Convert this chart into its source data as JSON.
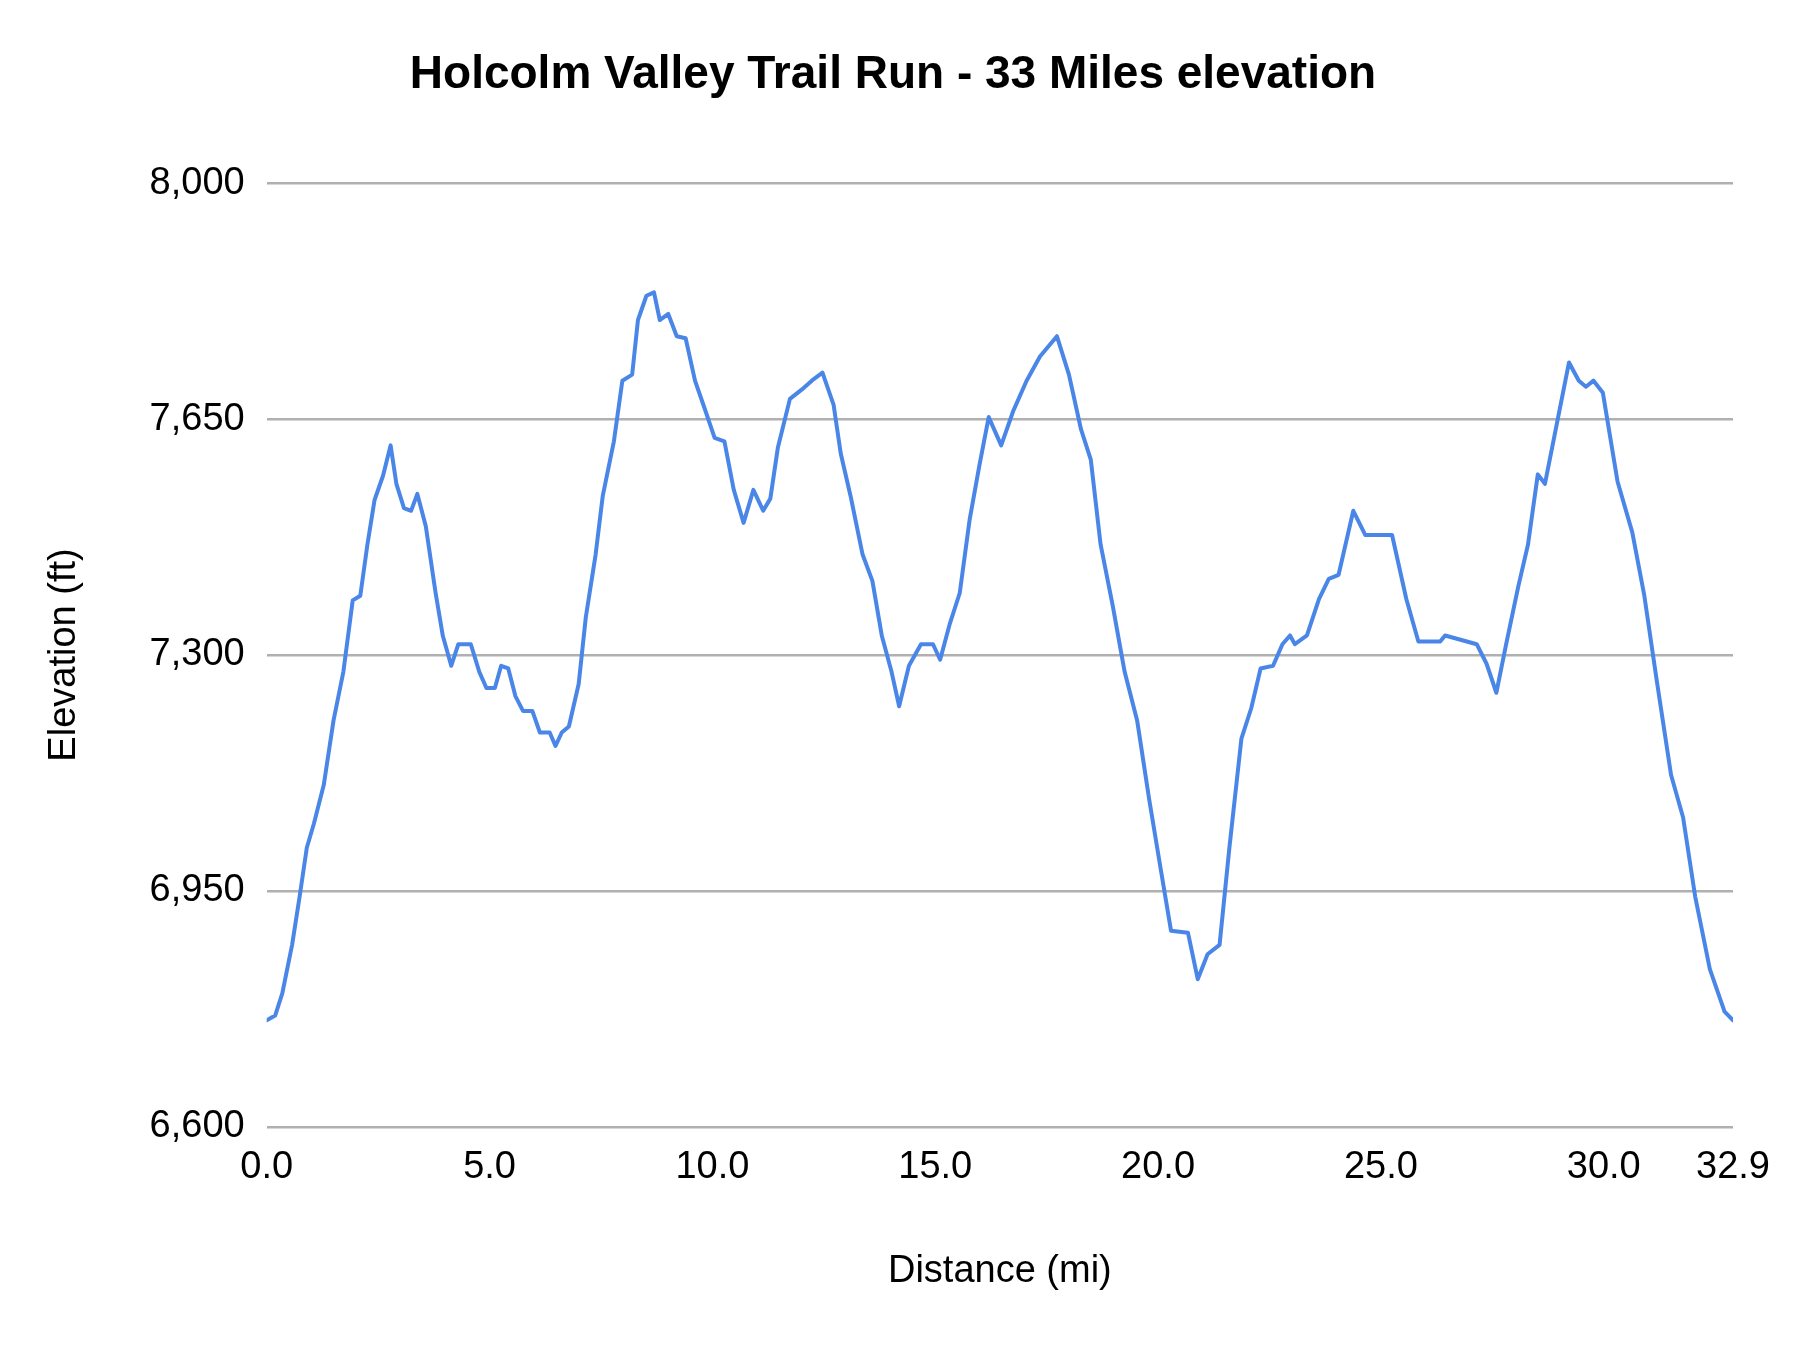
{
  "chart_data": {
    "type": "line",
    "title": "Holcolm Valley Trail Run - 33 Miles elevation",
    "xlabel": "Distance (mi)",
    "ylabel": "Elevation (ft)",
    "xlim": [
      0,
      32.9
    ],
    "xticks": [
      {
        "value": 0,
        "label": "0.0"
      },
      {
        "value": 5,
        "label": "5.0"
      },
      {
        "value": 10,
        "label": "10.0"
      },
      {
        "value": 15,
        "label": "15.0"
      },
      {
        "value": 20,
        "label": "20.0"
      },
      {
        "value": 25,
        "label": "25.0"
      },
      {
        "value": 30,
        "label": "30.0"
      },
      {
        "value": 32.9,
        "label": "32.9"
      }
    ],
    "ylim": [
      6600,
      8000
    ],
    "yticks": [
      {
        "value": 6600,
        "label": "6,600"
      },
      {
        "value": 6950,
        "label": "6,950"
      },
      {
        "value": 7300,
        "label": "7,300"
      },
      {
        "value": 7650,
        "label": "7,650"
      },
      {
        "value": 8000,
        "label": "8,000"
      }
    ],
    "grid": "y",
    "legend": false,
    "marker": "none",
    "line_style": "solid",
    "series": [
      {
        "color": "#4a86e8",
        "x": [
          0,
          0.19,
          0.35,
          0.57,
          0.74,
          0.9,
          1.06,
          1.28,
          1.5,
          1.72,
          1.93,
          2.1,
          2.26,
          2.42,
          2.61,
          2.78,
          2.91,
          3.08,
          3.24,
          3.38,
          3.57,
          3.79,
          3.95,
          4.14,
          4.3,
          4.58,
          4.77,
          4.93,
          5.12,
          5.26,
          5.42,
          5.58,
          5.75,
          5.96,
          6.13,
          6.35,
          6.48,
          6.62,
          6.78,
          7.0,
          7.16,
          7.38,
          7.54,
          7.79,
          7.98,
          8.2,
          8.33,
          8.52,
          8.69,
          8.82,
          9.01,
          9.2,
          9.4,
          9.61,
          9.83,
          10.05,
          10.27,
          10.48,
          10.7,
          10.92,
          11.14,
          11.3,
          11.47,
          11.74,
          12.01,
          12.23,
          12.47,
          12.72,
          12.88,
          13.1,
          13.37,
          13.59,
          13.8,
          14.02,
          14.19,
          14.41,
          14.68,
          14.95,
          15.11,
          15.33,
          15.55,
          15.77,
          15.99,
          16.2,
          16.48,
          16.75,
          17.05,
          17.35,
          17.73,
          18.0,
          18.27,
          18.49,
          18.71,
          18.98,
          19.25,
          19.53,
          19.8,
          20.07,
          20.29,
          20.67,
          20.89,
          21.11,
          21.38,
          21.6,
          21.87,
          22.09,
          22.3,
          22.58,
          22.79,
          22.96,
          23.07,
          23.34,
          23.61,
          23.83,
          24.05,
          24.38,
          24.65,
          25.25,
          25.57,
          25.84,
          26.33,
          26.44,
          27.15,
          27.37,
          27.59,
          27.81,
          28.08,
          28.3,
          28.52,
          28.68,
          28.95,
          29.22,
          29.44,
          29.6,
          29.77,
          29.98,
          30.31,
          30.64,
          30.91,
          31.18,
          31.51,
          31.78,
          32.05,
          32.38,
          32.71,
          32.9
        ],
        "values": [
          6758,
          6765,
          6798,
          6870,
          6942,
          7014,
          7050,
          7107,
          7203,
          7275,
          7381,
          7388,
          7464,
          7530,
          7566,
          7611,
          7554,
          7518,
          7514,
          7539,
          7491,
          7392,
          7329,
          7284,
          7316,
          7316,
          7275,
          7251,
          7251,
          7284,
          7280,
          7239,
          7217,
          7217,
          7185,
          7185,
          7165,
          7185,
          7194,
          7257,
          7356,
          7449,
          7536,
          7617,
          7707,
          7716,
          7797,
          7833,
          7838,
          7797,
          7806,
          7773,
          7770,
          7707,
          7665,
          7622,
          7617,
          7545,
          7496,
          7545,
          7514,
          7532,
          7608,
          7680,
          7694,
          7707,
          7719,
          7671,
          7599,
          7536,
          7449,
          7410,
          7329,
          7275,
          7224,
          7284,
          7316,
          7316,
          7293,
          7347,
          7392,
          7500,
          7581,
          7653,
          7611,
          7662,
          7707,
          7743,
          7773,
          7716,
          7635,
          7590,
          7464,
          7374,
          7275,
          7203,
          7086,
          6978,
          6891,
          6888,
          6819,
          6856,
          6870,
          7014,
          7176,
          7221,
          7280,
          7284,
          7316,
          7329,
          7316,
          7329,
          7383,
          7413,
          7419,
          7514,
          7478,
          7478,
          7383,
          7320,
          7320,
          7329,
          7316,
          7287,
          7244,
          7316,
          7401,
          7464,
          7568,
          7554,
          7644,
          7734,
          7707,
          7698,
          7707,
          7689,
          7557,
          7482,
          7388,
          7266,
          7122,
          7059,
          6942,
          6834,
          6771,
          6758
        ]
      }
    ]
  }
}
